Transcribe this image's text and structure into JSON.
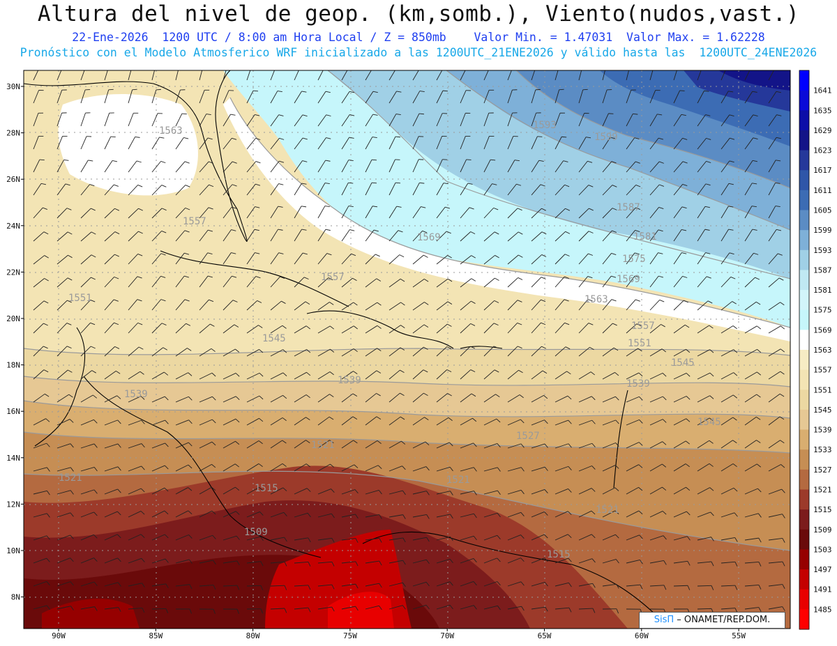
{
  "header": {
    "title": "Altura del nivel de geop. (km,somb.), Viento(nudos,vast.)",
    "line2": "22-Ene-2026  1200 UTC / 8:00 am Hora Local / Z = 850mb    Valor Min. = 1.47031  Valor Max. = 1.62228",
    "line3": "Pronóstico con el Modelo Atmosferico WRF inicializado a las 1200UTC_21ENE2026 y válido hasta las  1200UTC_24ENE2026"
  },
  "map": {
    "lat_ticks": [
      "30N",
      "28N",
      "26N",
      "24N",
      "22N",
      "20N",
      "18N",
      "16N",
      "14N",
      "12N",
      "10N",
      "8N"
    ],
    "lon_ticks": [
      "90W",
      "85W",
      "80W",
      "75W",
      "70W",
      "65W",
      "60W",
      "55W"
    ],
    "contour_labels": [
      "1563",
      "1557",
      "1551",
      "1557",
      "1569",
      "1593",
      "1599",
      "1587",
      "1581",
      "1575",
      "1569",
      "1563",
      "1557",
      "1551",
      "1545",
      "1545",
      "1539",
      "1539",
      "1539",
      "1545",
      "1527",
      "1521",
      "1521",
      "1515",
      "1509",
      "1521",
      "1521",
      "1515"
    ]
  },
  "colorbar": {
    "labels": [
      "1641",
      "1635",
      "1629",
      "1623",
      "1617",
      "1611",
      "1605",
      "1599",
      "1593",
      "1587",
      "1581",
      "1575",
      "1569",
      "1563",
      "1557",
      "1551",
      "1545",
      "1539",
      "1533",
      "1527",
      "1521",
      "1515",
      "1509",
      "1503",
      "1497",
      "1491",
      "1485"
    ],
    "colors": [
      "#0000ff",
      "#0a0ad8",
      "#0c0ea8",
      "#131488",
      "#25389a",
      "#2f56a8",
      "#3c6cb4",
      "#5b8cc4",
      "#7eb0d8",
      "#a0d0e6",
      "#c0e8f2",
      "#d2f4fa",
      "#c6f6fb",
      "#ffffff",
      "#f6ecc4",
      "#f3e4b4",
      "#ecd8a2",
      "#e6c894",
      "#d9ae70",
      "#c68e54",
      "#b46a40",
      "#9c3a2a",
      "#7c1c1c",
      "#6a0a0a",
      "#960000",
      "#c40000",
      "#e80000",
      "#ff0000"
    ]
  },
  "credit": {
    "brand": "SisΠ",
    "text": " – ONAMET/REP.DOM."
  }
}
